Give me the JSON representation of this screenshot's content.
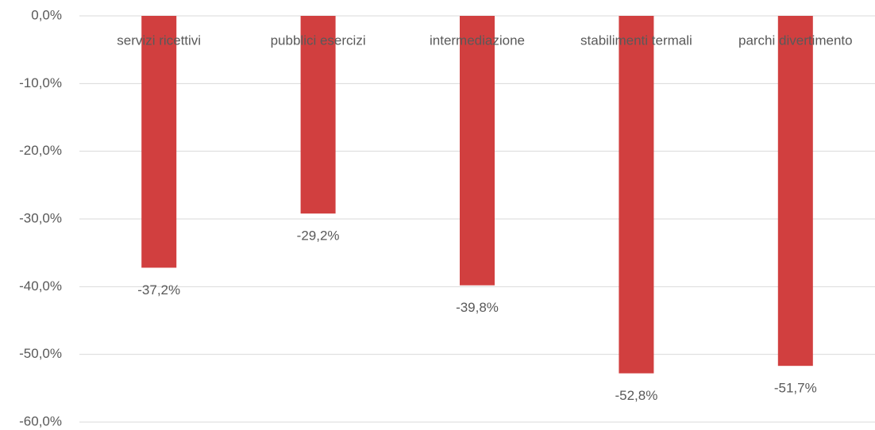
{
  "chart_data": {
    "type": "bar",
    "categories": [
      "servizi ricettivi",
      "pubblici esercizi",
      "intermediazione",
      "stabilimenti termali",
      "parchi divertimento"
    ],
    "values": [
      -37.2,
      -29.2,
      -39.8,
      -52.8,
      -51.7
    ],
    "value_labels": [
      "-37,2%",
      "-29,2%",
      "-39,8%",
      "-52,8%",
      "-51,7%"
    ],
    "color": "#d13f3f",
    "ylim": [
      -60,
      0
    ],
    "yticks": [
      {
        "value": 0,
        "label": "0,0%"
      },
      {
        "value": -10,
        "label": "-10,0%"
      },
      {
        "value": -20,
        "label": "-20,0%"
      },
      {
        "value": -30,
        "label": "-30,0%"
      },
      {
        "value": -40,
        "label": "-40,0%"
      },
      {
        "value": -50,
        "label": "-50,0%"
      },
      {
        "value": -60,
        "label": "-60,0%"
      }
    ],
    "grid": true
  }
}
